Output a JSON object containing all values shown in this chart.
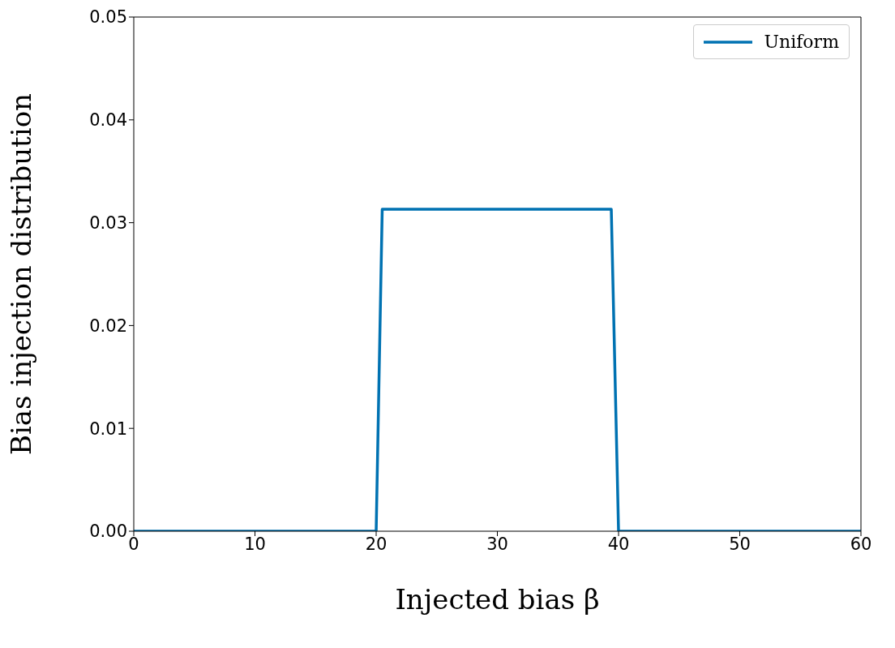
{
  "chart_data": {
    "type": "line",
    "xlabel": "Injected bias β",
    "ylabel": "Bias injection distribution",
    "x": [
      0,
      20,
      20.5,
      39.4,
      40,
      60
    ],
    "series": [
      {
        "name": "Uniform",
        "color": "#0072b2",
        "values": [
          0,
          0,
          0.0313,
          0.0313,
          0,
          0
        ]
      }
    ],
    "xlim": [
      0,
      60
    ],
    "xticks": [
      0,
      10,
      20,
      30,
      40,
      50,
      60
    ],
    "ylim": [
      0,
      0.05
    ],
    "yticks": [
      {
        "value": 0,
        "label": "0.00"
      },
      {
        "value": 0.01,
        "label": "0.01"
      },
      {
        "value": 0.02,
        "label": "0.02"
      },
      {
        "value": 0.03,
        "label": "0.03"
      },
      {
        "value": 0.04,
        "label": "0.04"
      },
      {
        "value": 0.05,
        "label": "0.05"
      }
    ],
    "legend": "top right",
    "grid": false,
    "marker": "none",
    "line_style": "solid"
  }
}
